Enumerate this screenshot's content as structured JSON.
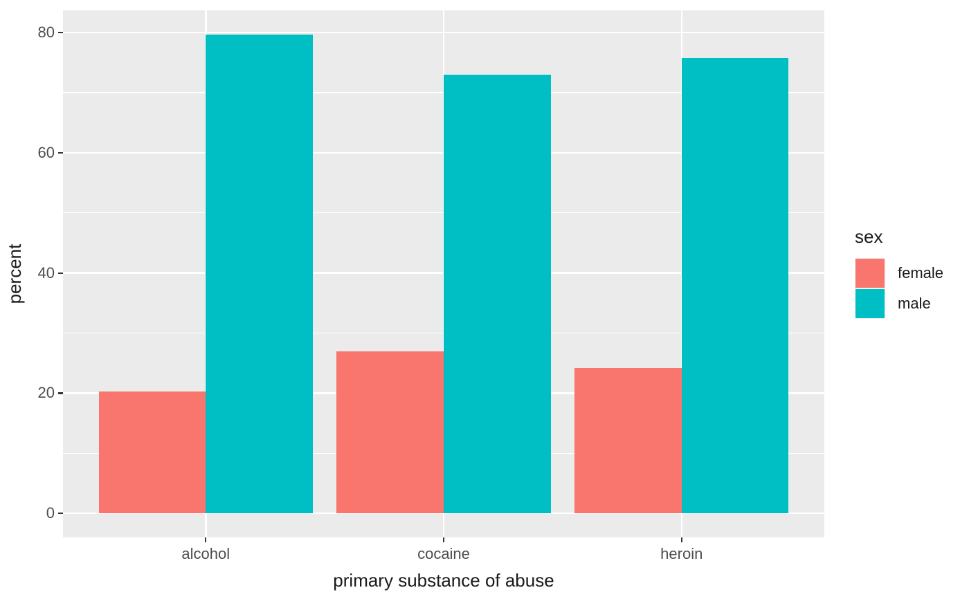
{
  "chart_data": {
    "type": "bar",
    "variant": "grouped-dodged",
    "title": "",
    "xlabel": "primary substance of abuse",
    "ylabel": "percent",
    "categories": [
      "alcohol",
      "cocaine",
      "heroin"
    ],
    "series": [
      {
        "name": "female",
        "color": "#F8766D",
        "values": [
          20.3,
          27.0,
          24.2
        ]
      },
      {
        "name": "male",
        "color": "#00BFC4",
        "values": [
          79.7,
          73.0,
          75.8
        ]
      }
    ],
    "value_unit": "percent",
    "legend_title": "sex",
    "legend_position": "right",
    "y_ticks": [
      0,
      20,
      40,
      60,
      80
    ],
    "y_tick_labels": [
      "0",
      "20",
      "40",
      "60",
      "80"
    ],
    "y_minor_ticks": [
      10,
      30,
      50,
      70
    ],
    "ylim": [
      -4,
      83.7
    ],
    "grid": true,
    "theme": {
      "panel_background": "#EBEBEB",
      "grid_color": "#FFFFFF",
      "tick_mark_color": "#333333",
      "tick_label_color": "#4D4D4D",
      "axis_title_color": "#1A1A1A"
    }
  }
}
